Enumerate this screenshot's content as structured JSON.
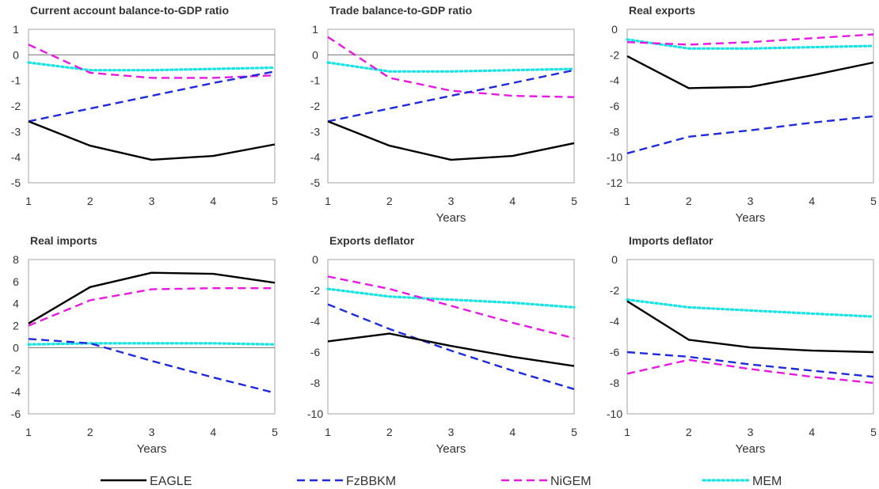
{
  "legend": [
    {
      "name": "EAGLE",
      "color": "#000000",
      "dash": "solid"
    },
    {
      "name": "FzBBKM",
      "color": "#1f2bd9",
      "dash": "dashed"
    },
    {
      "name": "NiGEM",
      "color": "#e619e0",
      "dash": "dashed"
    },
    {
      "name": "MEM",
      "color": "#19e3e3",
      "dash": "dotted"
    }
  ],
  "chart_data": [
    {
      "type": "line",
      "title": "Current account balance-to-GDP ratio",
      "xlabel": "",
      "ylabel": "",
      "x": [
        1,
        2,
        3,
        4,
        5
      ],
      "ylim": [
        -5,
        1
      ],
      "yticks": [
        1,
        0,
        -1,
        -2,
        -3,
        -4,
        -5
      ],
      "grid": false,
      "series": [
        {
          "name": "EAGLE",
          "values": [
            -2.6,
            -3.55,
            -4.1,
            -3.95,
            -3.5
          ]
        },
        {
          "name": "FzBBKM",
          "values": [
            -2.6,
            -2.1,
            -1.6,
            -1.1,
            -0.65
          ]
        },
        {
          "name": "NiGEM",
          "values": [
            0.4,
            -0.7,
            -0.9,
            -0.9,
            -0.8
          ]
        },
        {
          "name": "MEM",
          "values": [
            -0.3,
            -0.6,
            -0.6,
            -0.55,
            -0.5
          ]
        }
      ]
    },
    {
      "type": "line",
      "title": "Trade balance-to-GDP ratio",
      "xlabel": "Years",
      "ylabel": "",
      "x": [
        1,
        2,
        3,
        4,
        5
      ],
      "ylim": [
        -5,
        1
      ],
      "yticks": [
        1,
        0,
        -1,
        -2,
        -3,
        -4,
        -5
      ],
      "grid": false,
      "series": [
        {
          "name": "EAGLE",
          "values": [
            -2.6,
            -3.55,
            -4.1,
            -3.95,
            -3.45
          ]
        },
        {
          "name": "FzBBKM",
          "values": [
            -2.6,
            -2.1,
            -1.6,
            -1.1,
            -0.6
          ]
        },
        {
          "name": "NiGEM",
          "values": [
            0.7,
            -0.9,
            -1.4,
            -1.6,
            -1.65
          ]
        },
        {
          "name": "MEM",
          "values": [
            -0.3,
            -0.65,
            -0.65,
            -0.6,
            -0.55
          ]
        }
      ]
    },
    {
      "type": "line",
      "title": "Real exports",
      "xlabel": "Years",
      "ylabel": "",
      "x": [
        1,
        2,
        3,
        4,
        5
      ],
      "ylim": [
        -12,
        0
      ],
      "yticks": [
        0,
        -2,
        -4,
        -6,
        -8,
        -10,
        -12
      ],
      "grid": false,
      "series": [
        {
          "name": "EAGLE",
          "values": [
            -2.1,
            -4.6,
            -4.5,
            -3.6,
            -2.6
          ]
        },
        {
          "name": "FzBBKM",
          "values": [
            -9.7,
            -8.4,
            -7.9,
            -7.3,
            -6.8
          ]
        },
        {
          "name": "NiGEM",
          "values": [
            -1.0,
            -1.2,
            -1.0,
            -0.7,
            -0.4
          ]
        },
        {
          "name": "MEM",
          "values": [
            -0.8,
            -1.5,
            -1.5,
            -1.4,
            -1.3
          ]
        }
      ]
    },
    {
      "type": "line",
      "title": "Real imports",
      "xlabel": "Years",
      "ylabel": "",
      "x": [
        1,
        2,
        3,
        4,
        5
      ],
      "ylim": [
        -6,
        8
      ],
      "yticks": [
        8,
        6,
        4,
        2,
        0,
        -2,
        -4,
        -6
      ],
      "grid": false,
      "series": [
        {
          "name": "EAGLE",
          "values": [
            2.2,
            5.5,
            6.8,
            6.7,
            5.9
          ]
        },
        {
          "name": "FzBBKM",
          "values": [
            0.8,
            0.4,
            -1.2,
            -2.7,
            -4.1
          ]
        },
        {
          "name": "NiGEM",
          "values": [
            2.0,
            4.3,
            5.3,
            5.4,
            5.4
          ]
        },
        {
          "name": "MEM",
          "values": [
            0.3,
            0.4,
            0.4,
            0.4,
            0.3
          ]
        }
      ]
    },
    {
      "type": "line",
      "title": "Exports deflator",
      "xlabel": "Years",
      "ylabel": "",
      "x": [
        1,
        2,
        3,
        4,
        5
      ],
      "ylim": [
        -10,
        0
      ],
      "yticks": [
        0,
        -2,
        -4,
        -6,
        -8,
        -10
      ],
      "grid": false,
      "series": [
        {
          "name": "EAGLE",
          "values": [
            -5.3,
            -4.8,
            -5.6,
            -6.3,
            -6.9
          ]
        },
        {
          "name": "FzBBKM",
          "values": [
            -2.9,
            -4.5,
            -5.9,
            -7.2,
            -8.4
          ]
        },
        {
          "name": "NiGEM",
          "values": [
            -1.1,
            -1.9,
            -3.0,
            -4.1,
            -5.1
          ]
        },
        {
          "name": "MEM",
          "values": [
            -1.9,
            -2.4,
            -2.6,
            -2.8,
            -3.1
          ]
        }
      ]
    },
    {
      "type": "line",
      "title": "Imports deflator",
      "xlabel": "Years",
      "ylabel": "",
      "x": [
        1,
        2,
        3,
        4,
        5
      ],
      "ylim": [
        -10,
        0
      ],
      "yticks": [
        0,
        -2,
        -4,
        -6,
        -8,
        -10
      ],
      "grid": false,
      "series": [
        {
          "name": "EAGLE",
          "values": [
            -2.7,
            -5.2,
            -5.7,
            -5.9,
            -6.0
          ]
        },
        {
          "name": "FzBBKM",
          "values": [
            -6.0,
            -6.3,
            -6.8,
            -7.2,
            -7.6
          ]
        },
        {
          "name": "NiGEM",
          "values": [
            -7.4,
            -6.5,
            -7.1,
            -7.6,
            -8.0
          ]
        },
        {
          "name": "MEM",
          "values": [
            -2.6,
            -3.1,
            -3.3,
            -3.5,
            -3.7
          ]
        }
      ]
    }
  ]
}
